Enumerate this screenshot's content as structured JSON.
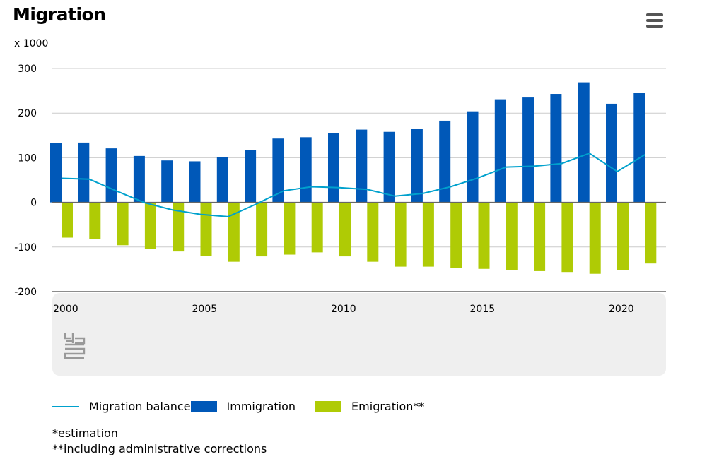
{
  "header": {
    "title": "Migration",
    "unit": "x 1000"
  },
  "colors": {
    "immigration": "#0058b8",
    "emigration": "#afcb05",
    "balance": "#00a1cd",
    "grid": "#cccccc",
    "axis": "#666666",
    "footer_panel": "#efefef",
    "logo": "#999999"
  },
  "icons": {
    "menu": "hamburger-menu-icon",
    "logo": "cbs-logo-icon"
  },
  "chart_data": {
    "type": "bar",
    "categories": [
      "2000",
      "2001",
      "2002",
      "2003",
      "2004",
      "2005",
      "2006",
      "2007",
      "2008",
      "2009",
      "2010",
      "2011",
      "2012",
      "2013",
      "2014",
      "2015",
      "2016",
      "2017",
      "2018",
      "2019",
      "2020",
      "2021"
    ],
    "x_tick_labels": [
      "2000",
      "2005",
      "2010",
      "2015",
      "2020"
    ],
    "y_tick_labels": [
      "300",
      "200",
      "100",
      "0",
      "-100",
      "-200"
    ],
    "ylim": [
      -200,
      300
    ],
    "grid": true,
    "legend_position": "bottom",
    "series": [
      {
        "name": "Immigration",
        "kind": "bar",
        "values": [
          133,
          134,
          121,
          104,
          94,
          92,
          101,
          117,
          143,
          146,
          155,
          163,
          158,
          165,
          183,
          204,
          231,
          235,
          243,
          269,
          221,
          245
        ]
      },
      {
        "name": "Emigration**",
        "kind": "bar",
        "values": [
          -79,
          -82,
          -96,
          -105,
          -110,
          -120,
          -133,
          -121,
          -117,
          -112,
          -121,
          -133,
          -144,
          -144,
          -147,
          -149,
          -152,
          -154,
          -156,
          -160,
          -152,
          -137
        ]
      },
      {
        "name": "Migration balance",
        "kind": "line",
        "values": [
          54,
          52,
          25,
          -1,
          -17,
          -27,
          -32,
          -4,
          26,
          35,
          33,
          29,
          14,
          20,
          35,
          55,
          79,
          81,
          87,
          110,
          69,
          107
        ]
      }
    ]
  },
  "notes": {
    "estimation": "*estimation",
    "corrections": "**including administrative corrections"
  }
}
